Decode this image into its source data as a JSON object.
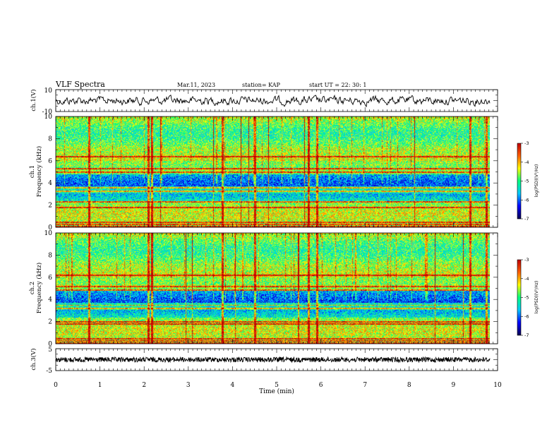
{
  "header": {
    "title": "VLF Spectra",
    "date": "Mar.11, 2023",
    "station": "station= KAP",
    "start": "start  UT  =   22: 30: 1"
  },
  "chart_data": [
    {
      "type": "line",
      "name": "ch1-waveform",
      "ylabel": "ch.1(V)",
      "ylim": [
        -10,
        10
      ],
      "y_ticks": [
        "10",
        "-10"
      ],
      "xlim": [
        0,
        10
      ],
      "x_end": 9.83
    },
    {
      "type": "heatmap",
      "name": "ch1-spectrogram",
      "ylabel_line1": "ch.1",
      "ylabel_line2": "Frequency  (kHz)",
      "ylim": [
        0,
        10
      ],
      "y_ticks": [
        "0",
        "2",
        "4",
        "6",
        "8",
        "10"
      ],
      "x_range": [
        0,
        9.83
      ],
      "colorbar": {
        "range": [
          -7,
          -3
        ],
        "ticks": [
          "-3",
          "-4",
          "-5",
          "-6",
          "-7"
        ],
        "label": "log(PSD)(V²/Hz)"
      },
      "colormap": [
        "#0a0050",
        "#0000ff",
        "#00c8ff",
        "#00ff80",
        "#ffff00",
        "#ff6000",
        "#c00000"
      ],
      "bands_khz": [
        0.5,
        0.3,
        1.8,
        2.3,
        3.3,
        3.6,
        5.0,
        5.3,
        6.4
      ],
      "spikes_min": [
        0.75,
        2.1,
        2.17,
        3.77,
        4.5,
        5.73,
        5.92,
        9.38,
        9.75
      ]
    },
    {
      "type": "heatmap",
      "name": "ch2-spectrogram",
      "ylabel_line1": "ch.2",
      "ylabel_line2": "Frequency  (kHz)",
      "ylim": [
        0,
        10
      ],
      "y_ticks": [
        "0",
        "2",
        "4",
        "6",
        "8",
        "10"
      ],
      "x_range": [
        0,
        9.83
      ],
      "colorbar": {
        "range": [
          -7,
          -3
        ],
        "ticks": [
          "-3",
          "-4",
          "-5",
          "-6",
          "-7"
        ],
        "label": "log(PSD)(V²/Hz)"
      },
      "colormap": [
        "#0a0050",
        "#0000ff",
        "#00c8ff",
        "#00ff80",
        "#ffff00",
        "#ff6000",
        "#c00000"
      ],
      "bands_khz": [
        0.5,
        0.3,
        1.8,
        2.0,
        3.2,
        3.5,
        4.9,
        5.2,
        6.2
      ],
      "spikes_min": [
        0.75,
        2.1,
        2.17,
        3.77,
        4.5,
        5.73,
        5.92,
        9.38,
        9.75
      ]
    },
    {
      "type": "line",
      "name": "ch3-waveform",
      "ylabel": "ch.3(V)",
      "ylim": [
        -5,
        5
      ],
      "y_ticks": [
        "5",
        "-5"
      ],
      "xlim": [
        0,
        10
      ],
      "level": 0,
      "x_end": 9.83,
      "xlabel": "Time  (min)",
      "x_ticks": [
        "0",
        "1",
        "2",
        "3",
        "4",
        "5",
        "6",
        "7",
        "8",
        "9",
        "10"
      ]
    }
  ]
}
